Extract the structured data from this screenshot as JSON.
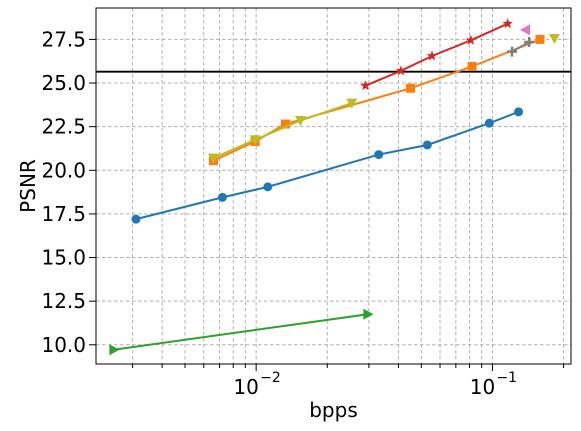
{
  "chart_data": {
    "type": "line",
    "xlabel": "bpps",
    "ylabel": "PSNR",
    "xscale": "log",
    "xlim": [
      0.0021,
      0.215
    ],
    "ylim": [
      8.9,
      29.3
    ],
    "grid": true,
    "grid_style": "dashed",
    "legend": "none",
    "x_ticks": [
      {
        "value": 0.01,
        "label": "10",
        "exp": "−2"
      },
      {
        "value": 0.1,
        "label": "10",
        "exp": "−1"
      }
    ],
    "y_ticks": [
      {
        "value": 10.0,
        "label": "10.0"
      },
      {
        "value": 12.5,
        "label": "12.5"
      },
      {
        "value": 15.0,
        "label": "15.0"
      },
      {
        "value": 17.5,
        "label": "17.5"
      },
      {
        "value": 20.0,
        "label": "20.0"
      },
      {
        "value": 22.5,
        "label": "22.5"
      },
      {
        "value": 25.0,
        "label": "25.0"
      },
      {
        "value": 27.5,
        "label": "27.5"
      }
    ],
    "reference_line": {
      "y": 25.65,
      "color": "#000000"
    },
    "series": [
      {
        "color": "#1f77b4",
        "marker": "circle",
        "line": true,
        "points": [
          [
            0.0031,
            17.2
          ],
          [
            0.0072,
            18.45
          ],
          [
            0.0112,
            19.05
          ],
          [
            0.033,
            20.9
          ],
          [
            0.053,
            21.45
          ],
          [
            0.097,
            22.7
          ],
          [
            0.129,
            23.35
          ]
        ]
      },
      {
        "color": "#d62728",
        "marker": "star",
        "line": true,
        "points": [
          [
            0.029,
            24.85
          ],
          [
            0.041,
            25.7
          ],
          [
            0.0555,
            26.55
          ],
          [
            0.081,
            27.45
          ],
          [
            0.116,
            28.4
          ]
        ]
      },
      {
        "color": "#ff7f0e",
        "marker": "square",
        "line": true,
        "points": [
          [
            0.0066,
            20.55
          ],
          [
            0.0099,
            21.65
          ],
          [
            0.0133,
            22.65
          ],
          [
            0.045,
            24.7
          ],
          [
            0.082,
            25.95
          ],
          [
            0.159,
            27.5
          ]
        ]
      },
      {
        "color": "#bcbd22",
        "marker": "triangle-down",
        "line": true,
        "points": [
          [
            0.0066,
            20.7
          ],
          [
            0.0099,
            21.75
          ],
          [
            0.0154,
            22.85
          ],
          [
            0.0254,
            23.85
          ]
        ]
      },
      {
        "color": "#7f7f7f",
        "marker": "plus",
        "line": true,
        "points": [
          [
            0.121,
            26.8
          ],
          [
            0.143,
            27.35
          ]
        ]
      },
      {
        "color": "#e377c2",
        "marker": "triangle-left",
        "line": false,
        "points": [
          [
            0.138,
            28.05
          ]
        ]
      },
      {
        "color": "#bcbd22",
        "marker": "triangle-down",
        "line": false,
        "points": [
          [
            0.183,
            27.55
          ]
        ]
      },
      {
        "color": "#2ca02c",
        "marker": "triangle-right",
        "line": true,
        "points": [
          [
            0.0025,
            9.72
          ],
          [
            0.0297,
            11.75
          ]
        ]
      }
    ]
  }
}
